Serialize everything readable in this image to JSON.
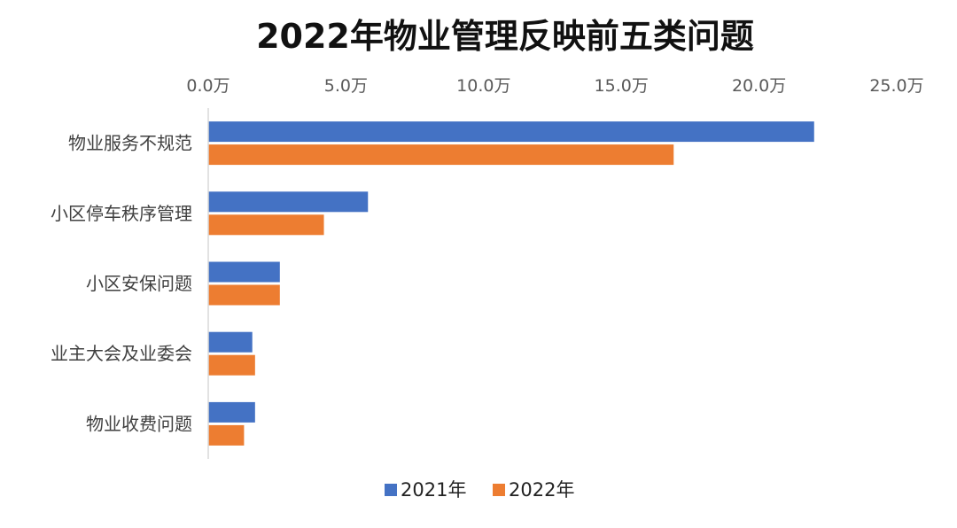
{
  "chart_data": {
    "type": "bar",
    "orientation": "horizontal",
    "title": "2022年物业管理反映前五类问题",
    "xlabel": "",
    "ylabel": "",
    "categories": [
      "物业服务不规范",
      "小区停车秩序管理",
      "小区安保问题",
      "业主大会及业委会",
      "物业收费问题"
    ],
    "series": [
      {
        "name": "2021年",
        "color": "#4472C4",
        "values": [
          22.0,
          5.8,
          2.6,
          1.6,
          1.7
        ]
      },
      {
        "name": "2022年",
        "color": "#ED7D31",
        "values": [
          16.9,
          4.2,
          2.6,
          1.7,
          1.3
        ]
      }
    ],
    "xlim": [
      0,
      25
    ],
    "ticks": [
      {
        "value": 0,
        "label": "0.0万"
      },
      {
        "value": 5,
        "label": "5.0万"
      },
      {
        "value": 10,
        "label": "10.0万"
      },
      {
        "value": 15,
        "label": "15.0万"
      },
      {
        "value": 20,
        "label": "20.0万"
      },
      {
        "value": 25,
        "label": "25.0万"
      }
    ],
    "axis_position": "top",
    "grid": false,
    "legend_position": "bottom"
  }
}
